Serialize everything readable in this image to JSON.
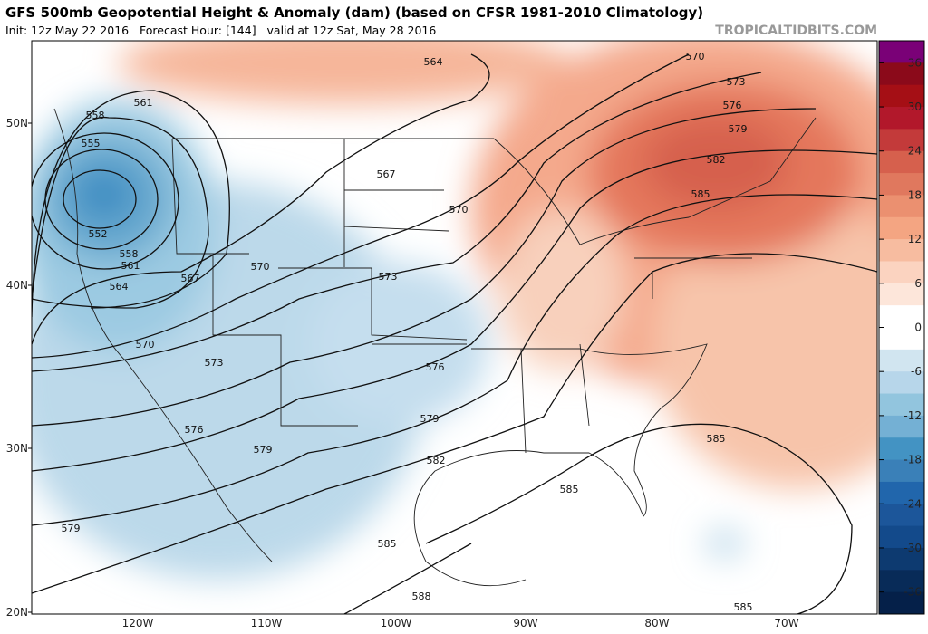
{
  "header": {
    "title": "GFS 500mb Geopotential Height & Anomaly (dam) (based on CFSR 1981-2010 Climatology)",
    "subtitle": "Init: 12z May 22 2016   Forecast Hour: [144]   valid at 12z Sat, May 28 2016",
    "brand": "TROPICALTIDBITS.COM"
  },
  "axes": {
    "lat_labels": [
      "50N",
      "40N",
      "30N",
      "20N"
    ],
    "lon_labels": [
      "120W",
      "110W",
      "100W",
      "90W",
      "80W",
      "70W"
    ]
  },
  "colorbar": {
    "ticks": [
      "36",
      "30",
      "24",
      "18",
      "12",
      "6",
      "0",
      "-6",
      "-12",
      "-18",
      "-24",
      "-30",
      "-36"
    ]
  },
  "contour_labels": [
    "564",
    "561",
    "558",
    "555",
    "552",
    "558",
    "561",
    "564",
    "567",
    "570",
    "570",
    "573",
    "573",
    "567",
    "570",
    "576",
    "576",
    "579",
    "579",
    "579",
    "582",
    "585",
    "585",
    "585",
    "585",
    "588",
    "570",
    "573",
    "576",
    "579",
    "582",
    "585"
  ]
}
